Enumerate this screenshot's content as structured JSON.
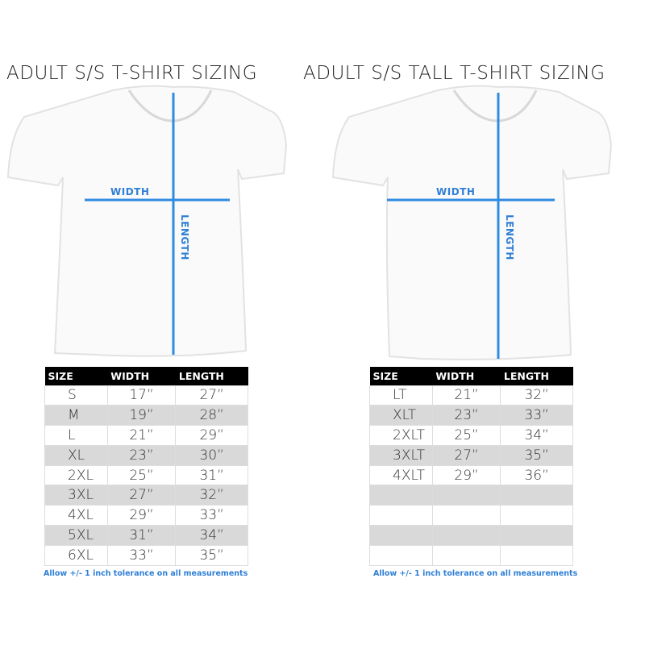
{
  "left": {
    "title": "ADULT S/S T-SHIRT SIZING",
    "width_label": "WIDTH",
    "length_label": "LENGTH",
    "headers": [
      "SIZE",
      "WIDTH",
      "LENGTH"
    ],
    "rows": [
      [
        "S",
        "17”",
        "27”"
      ],
      [
        "M",
        "19”",
        "28”"
      ],
      [
        "L",
        "21”",
        "29”"
      ],
      [
        "XL",
        "23”",
        "30”"
      ],
      [
        "2XL",
        "25”",
        "31”"
      ],
      [
        "3XL",
        "27”",
        "32”"
      ],
      [
        "4XL",
        "29”",
        "33”"
      ],
      [
        "5XL",
        "31”",
        "34”"
      ],
      [
        "6XL",
        "33”",
        "35”"
      ]
    ],
    "note": "Allow +/- 1 inch tolerance on all measurements"
  },
  "right": {
    "title": "ADULT S/S TALL T-SHIRT SIZING",
    "width_label": "WIDTH",
    "length_label": "LENGTH",
    "headers": [
      "SIZE",
      "WIDTH",
      "LENGTH"
    ],
    "rows": [
      [
        "LT",
        "21”",
        "32”"
      ],
      [
        "XLT",
        "23”",
        "33”"
      ],
      [
        "2XLT",
        "25”",
        "34”"
      ],
      [
        "3XLT",
        "27”",
        "35”"
      ],
      [
        "4XLT",
        "29”",
        "36”"
      ],
      [
        "",
        "",
        ""
      ],
      [
        "",
        "",
        ""
      ],
      [
        "",
        "",
        ""
      ],
      [
        "",
        "",
        ""
      ]
    ],
    "note": "Allow +/- 1 inch tolerance on all measurements"
  },
  "colors": {
    "accent": "#2f7fd6"
  }
}
